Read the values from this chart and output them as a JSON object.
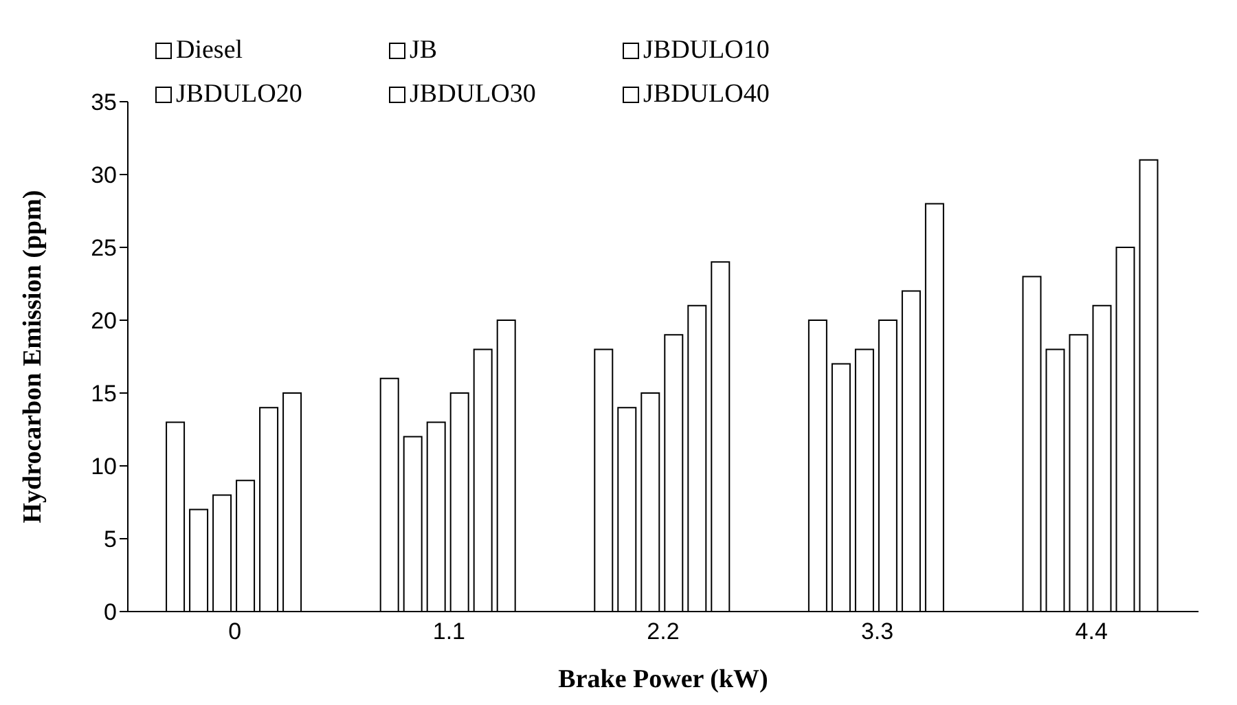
{
  "chart_data": {
    "type": "bar",
    "xlabel": "Brake Power  (kW)",
    "ylabel": "Hydrocarbon  Emission  (ppm)",
    "categories": [
      "0",
      "1.1",
      "2.2",
      "3.3",
      "4.4"
    ],
    "series": [
      {
        "name": "Diesel",
        "color": "#ffffff",
        "values": [
          13,
          16,
          18,
          20,
          23
        ]
      },
      {
        "name": "JB",
        "color": "#ffffff",
        "values": [
          7,
          12,
          14,
          17,
          18
        ]
      },
      {
        "name": "JBDULO10",
        "color": "#ffffff",
        "values": [
          8,
          13,
          15,
          18,
          19
        ]
      },
      {
        "name": "JBDULO20",
        "color": "#ffffff",
        "values": [
          9,
          15,
          19,
          20,
          21
        ]
      },
      {
        "name": "JBDULO30",
        "color": "#ffffff",
        "values": [
          14,
          18,
          21,
          22,
          25
        ]
      },
      {
        "name": "JBDULO40",
        "color": "#ffffff",
        "values": [
          15,
          20,
          24,
          28,
          31
        ]
      }
    ],
    "ylim": [
      0,
      35
    ],
    "yticks": [
      0,
      5,
      10,
      15,
      20,
      25,
      30,
      35
    ],
    "legend": "top left"
  }
}
